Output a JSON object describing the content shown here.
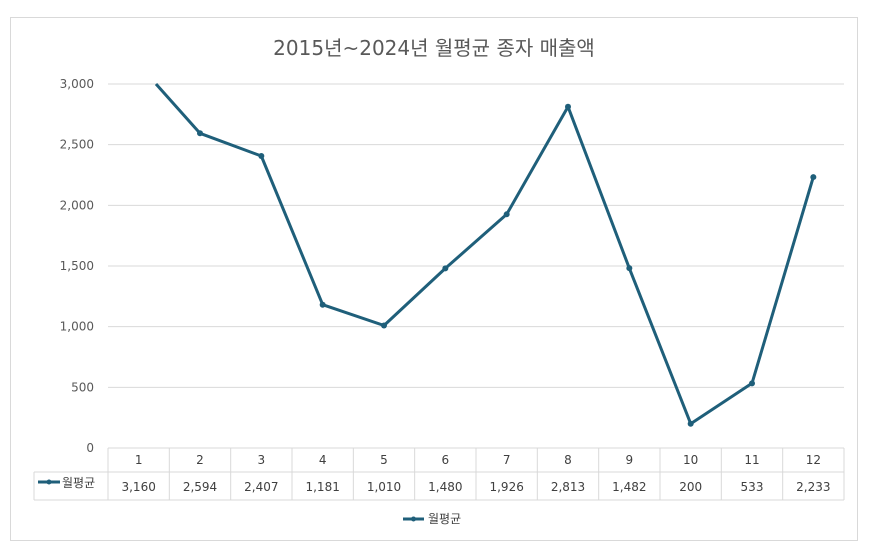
{
  "chart_data": {
    "type": "line",
    "title": "2015년~2024년 월평균 종자 매출액",
    "xlabel": "",
    "ylabel": "",
    "categories": [
      "1",
      "2",
      "3",
      "4",
      "5",
      "6",
      "7",
      "8",
      "9",
      "10",
      "11",
      "12"
    ],
    "series": [
      {
        "name": "월평균",
        "values": [
          3160,
          2594,
          2407,
          1181,
          1010,
          1480,
          1926,
          2813,
          1482,
          200,
          533,
          2233
        ],
        "value_labels": [
          "3,160",
          "2,594",
          "2,407",
          "1,181",
          "1,010",
          "1,480",
          "1,926",
          "2,813",
          "1,482",
          "200",
          "533",
          "2,233"
        ],
        "color": "#1f5f7a"
      }
    ],
    "ylim": [
      0,
      3000
    ],
    "yticks": [
      0,
      500,
      1000,
      1500,
      2000,
      2500,
      3000
    ],
    "ytick_labels": [
      "0",
      "500",
      "1,000",
      "1,500",
      "2,000",
      "2,500",
      "3,000"
    ],
    "grid": true,
    "legend": "bottom",
    "data_table": true
  }
}
